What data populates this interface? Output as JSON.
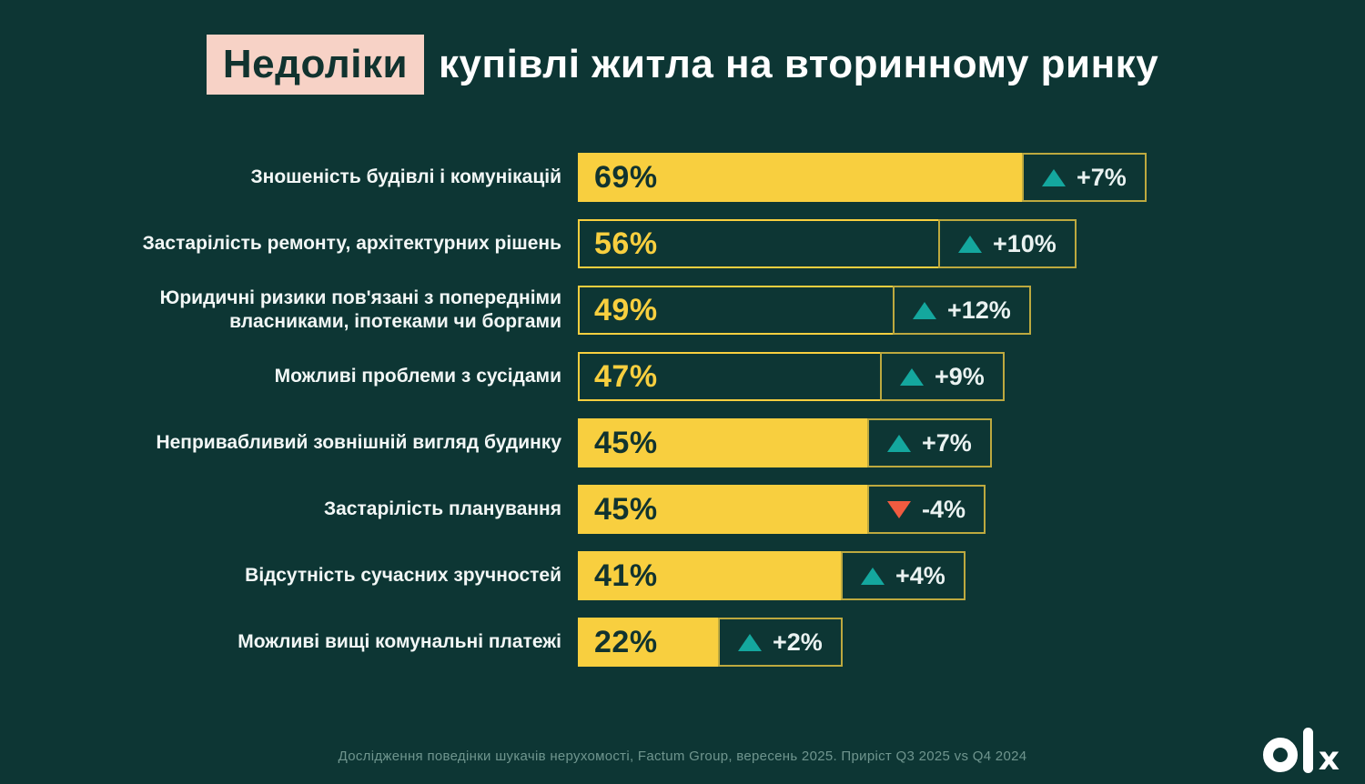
{
  "title": {
    "highlight": "Недоліки",
    "rest": "купівлі житла на вторинному ринку"
  },
  "colors": {
    "background": "#0d3634",
    "bar_yellow": "#f8cf3f",
    "highlight_pink": "#f7d2c6",
    "up_teal": "#14a79e",
    "down_red": "#f15b40",
    "badge_text": "#eaf2f1",
    "bar_text_dark": "#11332f",
    "label_white": "#f2f7f6",
    "footer_muted": "#6f958e"
  },
  "chart_data": {
    "type": "bar",
    "orientation": "horizontal",
    "unit": "%",
    "xlim": [
      0,
      100
    ],
    "title": "Недоліки купівлі житла на вторинному ринку",
    "legend": "none",
    "grid": false,
    "categories": [
      "Зношеність будівлі і комунікацій",
      "Застарілість ремонту, архітектурних рішень",
      "Юридичні ризики пов'язані з попередніми власниками, іпотеками чи боргами",
      "Можливі проблеми з сусідами",
      "Непривабливий зовнішній вигляд будинку",
      "Застарілість планування",
      "Відсутність сучасних зручностей",
      "Можливі вищі комунальні платежі"
    ],
    "values": [
      69,
      56,
      49,
      47,
      45,
      45,
      41,
      22
    ],
    "changes": [
      "+7%",
      "+10%",
      "+12%",
      "+9%",
      "+7%",
      "-4%",
      "+4%",
      "+2%"
    ],
    "rows": [
      {
        "label": "Зношеність будівлі і комунікацій",
        "value": 69,
        "value_label": "69%",
        "change": "+7%",
        "direction": "up",
        "bar_style": "filled"
      },
      {
        "label": "Застарілість ремонту, архітектурних рішень",
        "value": 56,
        "value_label": "56%",
        "change": "+10%",
        "direction": "up",
        "bar_style": "outline"
      },
      {
        "label": "Юридичні ризики пов'язані з попередніми власниками, іпотеками чи боргами",
        "value": 49,
        "value_label": "49%",
        "change": "+12%",
        "direction": "up",
        "bar_style": "outline"
      },
      {
        "label": "Можливі проблеми з сусідами",
        "value": 47,
        "value_label": "47%",
        "change": "+9%",
        "direction": "up",
        "bar_style": "outline"
      },
      {
        "label": "Непривабливий зовнішній вигляд будинку",
        "value": 45,
        "value_label": "45%",
        "change": "+7%",
        "direction": "up",
        "bar_style": "filled"
      },
      {
        "label": "Застарілість планування",
        "value": 45,
        "value_label": "45%",
        "change": "-4%",
        "direction": "down",
        "bar_style": "filled"
      },
      {
        "label": "Відсутність сучасних зручностей",
        "value": 41,
        "value_label": "41%",
        "change": "+4%",
        "direction": "up",
        "bar_style": "filled"
      },
      {
        "label": "Можливі вищі комунальні платежі",
        "value": 22,
        "value_label": "22%",
        "change": "+2%",
        "direction": "up",
        "bar_style": "filled"
      }
    ]
  },
  "footer": {
    "source": "Дослідження поведінки шукачів нерухомості, Factum Group, вересень 2025. Приріст Q3 2025 vs Q4 2024"
  },
  "logo": {
    "name": "olx",
    "x_glyph": "x"
  }
}
